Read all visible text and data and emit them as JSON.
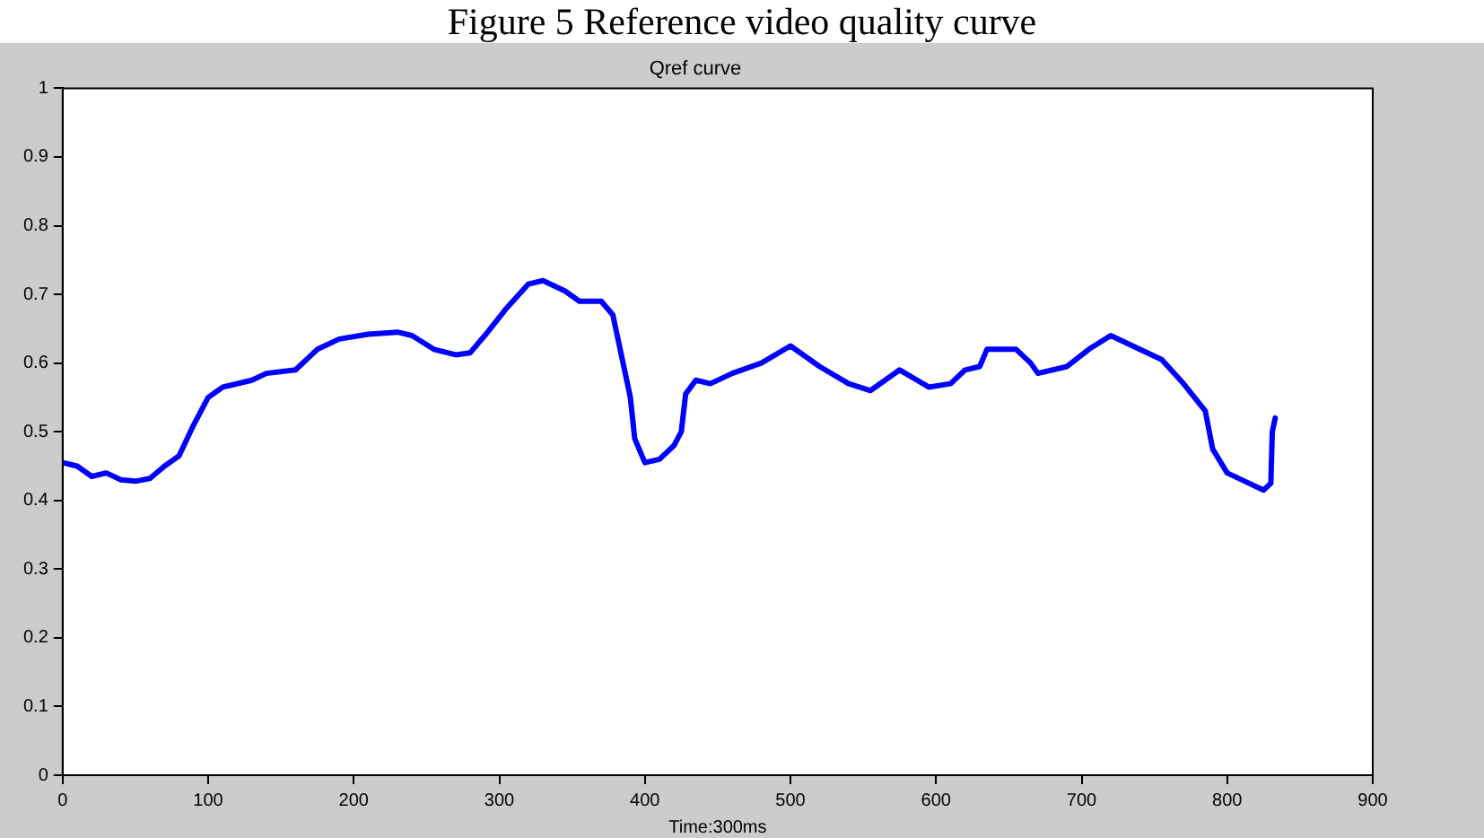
{
  "chart_data": {
    "type": "line",
    "title": "Qref curve",
    "xlabel": "Time:300ms",
    "annotations": [
      "Figure 5 Reference video quality curve"
    ],
    "xlim": [
      0,
      900
    ],
    "xticks": [
      0,
      100,
      200,
      300,
      400,
      500,
      600,
      700,
      800,
      900
    ],
    "ylim": [
      0,
      1
    ],
    "yticks": [
      0,
      0.1,
      0.2,
      0.3,
      0.4,
      0.5,
      0.6,
      0.7,
      0.8,
      0.9,
      1
    ],
    "grid": false,
    "legend": false,
    "marker": "none",
    "line_style": "solid",
    "series": [
      {
        "color": "#0000ff",
        "x": [
          0,
          10,
          20,
          30,
          40,
          50,
          60,
          70,
          80,
          90,
          100,
          110,
          130,
          140,
          160,
          175,
          190,
          210,
          230,
          240,
          255,
          270,
          280,
          290,
          305,
          320,
          330,
          345,
          355,
          370,
          378,
          385,
          390,
          393,
          400,
          410,
          420,
          425,
          428,
          435,
          445,
          460,
          480,
          500,
          520,
          540,
          555,
          575,
          595,
          610,
          620,
          630,
          635,
          655,
          665,
          670,
          690,
          705,
          720,
          735,
          755,
          770,
          785,
          790,
          800,
          815,
          825,
          830,
          831,
          833
        ],
        "values": [
          0.455,
          0.45,
          0.435,
          0.44,
          0.43,
          0.428,
          0.432,
          0.45,
          0.465,
          0.51,
          0.55,
          0.565,
          0.575,
          0.585,
          0.59,
          0.62,
          0.635,
          0.642,
          0.645,
          0.64,
          0.62,
          0.612,
          0.615,
          0.64,
          0.68,
          0.715,
          0.72,
          0.705,
          0.69,
          0.69,
          0.67,
          0.6,
          0.55,
          0.49,
          0.455,
          0.46,
          0.48,
          0.5,
          0.555,
          0.575,
          0.57,
          0.585,
          0.6,
          0.625,
          0.595,
          0.57,
          0.56,
          0.59,
          0.565,
          0.57,
          0.59,
          0.595,
          0.62,
          0.62,
          0.6,
          0.585,
          0.595,
          0.62,
          0.64,
          0.625,
          0.605,
          0.57,
          0.53,
          0.475,
          0.44,
          0.425,
          0.415,
          0.425,
          0.5,
          0.52
        ]
      }
    ]
  }
}
